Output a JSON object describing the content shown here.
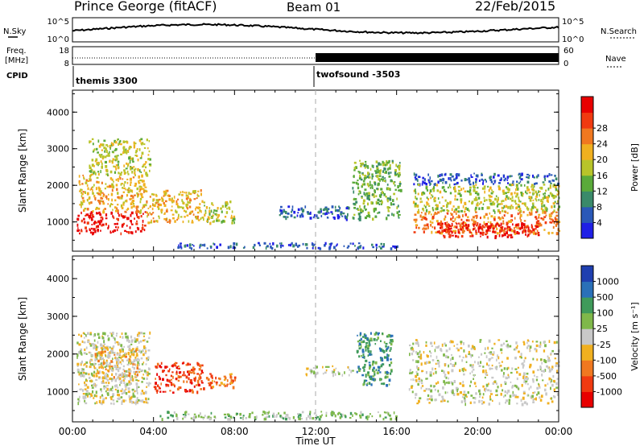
{
  "header": {
    "station": "Prince George (fitACF)",
    "beam": "Beam 01",
    "date": "22/Feb/2015"
  },
  "top_panels": {
    "sky_label": "N.Sky",
    "search_label": "N.Search",
    "noise_left_ticks": [
      "10^5",
      "10^0"
    ],
    "noise_right_ticks": [
      "10^5",
      "10^0"
    ],
    "freq_label_1": "Freq.",
    "freq_label_2": "[MHz]",
    "freq_ticks": [
      "18",
      "8"
    ],
    "nave_label": "Nave",
    "nave_ticks": [
      "60",
      "0"
    ],
    "cpid_label": "CPID",
    "cpid_segments": [
      {
        "name": "themis 3300",
        "start_hour": 0,
        "end_hour": 12
      },
      {
        "name": "twofsound -3503",
        "start_hour": 12,
        "end_hour": 24
      }
    ]
  },
  "chart_data": [
    {
      "type": "heatmap",
      "name": "power",
      "ylabel": "Slant Range [km]",
      "yticks": [
        "1000",
        "2000",
        "3000",
        "4000"
      ],
      "ylim": [
        200,
        4600
      ],
      "xlim": [
        0,
        24
      ],
      "colorbar": {
        "label": "Power [dB]",
        "ticks": [
          "4",
          "8",
          "12",
          "16",
          "20",
          "24",
          "28"
        ],
        "colors": [
          "#1f1fe6",
          "#2a58b8",
          "#3a8a6a",
          "#5aaa3a",
          "#b8c42a",
          "#f0b020",
          "#f07820",
          "#f03a10",
          "#e80000"
        ]
      },
      "regions": [
        {
          "x0": 0.2,
          "x1": 3.6,
          "y0": 700,
          "y1": 1300,
          "level": 8
        },
        {
          "x0": 0.3,
          "x1": 3.6,
          "y0": 1300,
          "y1": 2300,
          "level": 5
        },
        {
          "x0": 0.8,
          "x1": 3.8,
          "y0": 2300,
          "y1": 3300,
          "level": 4
        },
        {
          "x0": 3.6,
          "x1": 6.4,
          "y0": 1000,
          "y1": 1900,
          "level": 5
        },
        {
          "x0": 6.4,
          "x1": 8.0,
          "y0": 1000,
          "y1": 1600,
          "level": 4
        },
        {
          "x0": 5.0,
          "x1": 16.0,
          "y0": 300,
          "y1": 450,
          "level": 1
        },
        {
          "x0": 10.2,
          "x1": 13.6,
          "y0": 1100,
          "y1": 1450,
          "level": 1
        },
        {
          "x0": 13.8,
          "x1": 16.2,
          "y0": 1100,
          "y1": 2700,
          "level": 3
        },
        {
          "x0": 16.8,
          "x1": 24.0,
          "y0": 2050,
          "y1": 2350,
          "level": 1
        },
        {
          "x0": 16.8,
          "x1": 24.0,
          "y0": 1300,
          "y1": 2050,
          "level": 4
        },
        {
          "x0": 16.8,
          "x1": 24.0,
          "y0": 700,
          "y1": 1300,
          "level": 6
        },
        {
          "x0": 18.0,
          "x1": 23.0,
          "y0": 600,
          "y1": 1000,
          "level": 8
        }
      ]
    },
    {
      "type": "heatmap",
      "name": "velocity",
      "ylabel": "Slant Range [km]",
      "yticks": [
        "1000",
        "2000",
        "3000",
        "4000"
      ],
      "ylim": [
        200,
        4600
      ],
      "xlim": [
        0,
        24
      ],
      "colorbar": {
        "label": "Velocity [m s⁻¹]",
        "ticks": [
          "1000",
          "500",
          "100",
          "25",
          "-25",
          "-100",
          "-500",
          "-1000"
        ],
        "colors": [
          "#1f3fb0",
          "#2a70b8",
          "#3f9a5a",
          "#7fb84a",
          "#c8c8c8",
          "#f0b020",
          "#f07820",
          "#f03a10",
          "#e80000"
        ]
      },
      "regions": [
        {
          "x0": 0.2,
          "x1": 3.8,
          "y0": 700,
          "y1": 2600,
          "level": 4
        },
        {
          "x0": 1.0,
          "x1": 3.2,
          "y0": 1400,
          "y1": 2200,
          "level": 5
        },
        {
          "x0": 4.0,
          "x1": 6.4,
          "y0": 1000,
          "y1": 1800,
          "level": 7
        },
        {
          "x0": 6.4,
          "x1": 8.0,
          "y0": 1100,
          "y1": 1500,
          "level": 6
        },
        {
          "x0": 4.0,
          "x1": 16.0,
          "y0": 300,
          "y1": 500,
          "level": 3
        },
        {
          "x0": 11.5,
          "x1": 13.8,
          "y0": 1450,
          "y1": 1700,
          "level": 4
        },
        {
          "x0": 14.0,
          "x1": 15.8,
          "y0": 1200,
          "y1": 2600,
          "level": 2
        },
        {
          "x0": 16.6,
          "x1": 24.0,
          "y0": 700,
          "y1": 2400,
          "level": 4
        }
      ]
    }
  ],
  "xaxis": {
    "ticks": [
      "00:00",
      "04:00",
      "08:00",
      "12:00",
      "16:00",
      "20:00",
      "00:00"
    ],
    "label": "Time UT"
  }
}
